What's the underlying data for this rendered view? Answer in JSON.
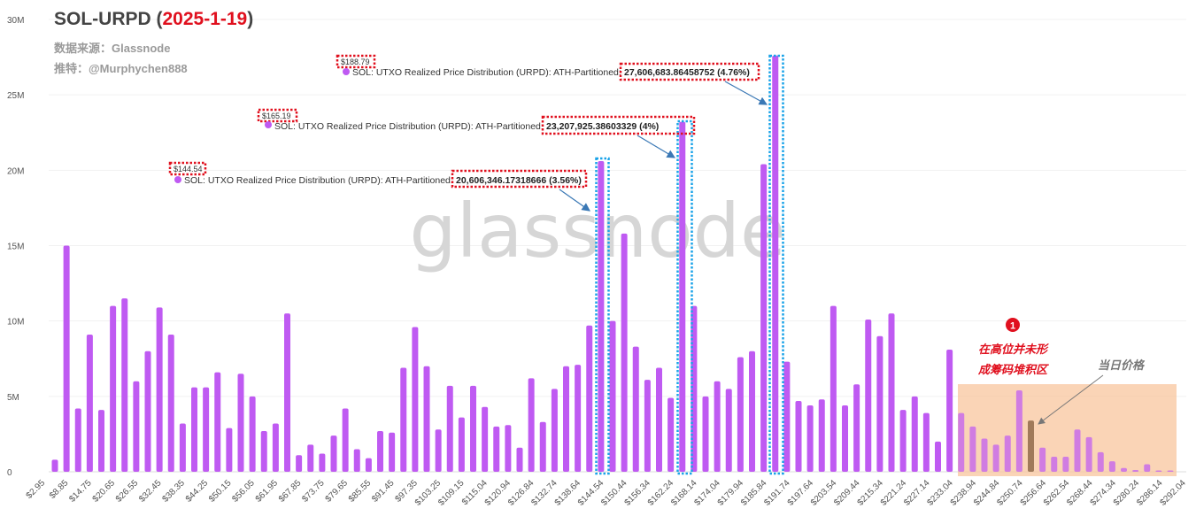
{
  "header": {
    "title_prefix": "SOL-URPD (",
    "title_date": "2025-1-19",
    "title_suffix": ")",
    "source": "数据来源：Glassnode",
    "twitter": "推特：@Murphychen888"
  },
  "watermark": "glassnode",
  "colors": {
    "bar": "#bf5af2",
    "current_bar": "#a07a5a",
    "highlight_zone": "#f9c9a4",
    "annotation_red": "#e0101e",
    "box_blue": "#1aa3e8"
  },
  "chart_data": {
    "type": "bar",
    "title": "SOL-URPD (2025-1-19)",
    "series_name": "SOL: UTXO Realized Price Distribution (URPD): ATH-Partitioned",
    "ylim": [
      0,
      30000000
    ],
    "yticks": [
      "0",
      "5M",
      "10M",
      "15M",
      "20M",
      "25M",
      "30M"
    ],
    "xtick_labels": [
      "$2.95",
      "$8.85",
      "$14.75",
      "$20.65",
      "$26.55",
      "$32.45",
      "$38.35",
      "$44.25",
      "$50.15",
      "$56.05",
      "$61.95",
      "$67.85",
      "$73.75",
      "$79.65",
      "$85.55",
      "$91.45",
      "$97.35",
      "$103.25",
      "$109.15",
      "$115.04",
      "$120.94",
      "$126.84",
      "$132.74",
      "$138.64",
      "$144.54",
      "$150.44",
      "$156.34",
      "$162.24",
      "$168.14",
      "$174.04",
      "$179.94",
      "$185.84",
      "$191.74",
      "$197.64",
      "$203.54",
      "$209.44",
      "$215.34",
      "$221.24",
      "$227.14",
      "$233.04",
      "$238.94",
      "$244.84",
      "$250.74",
      "$256.64",
      "$262.54",
      "$268.44",
      "$274.34",
      "$280.24",
      "$286.14",
      "$292.04"
    ],
    "values_millions": [
      0.8,
      15.0,
      4.2,
      9.1,
      4.1,
      11.0,
      11.5,
      6.0,
      8.0,
      10.9,
      9.1,
      3.2,
      5.6,
      5.6,
      6.6,
      2.9,
      6.5,
      5.0,
      2.7,
      3.2,
      10.5,
      1.1,
      1.8,
      1.2,
      2.4,
      4.2,
      1.5,
      0.9,
      2.7,
      2.6,
      6.9,
      9.6,
      7.0,
      2.8,
      5.7,
      3.6,
      5.7,
      4.3,
      3.0,
      3.1,
      1.6,
      6.2,
      3.3,
      5.5,
      7.0,
      7.1,
      9.7,
      20.61,
      10.0,
      15.8,
      8.3,
      6.1,
      6.9,
      4.9,
      23.21,
      11.0,
      5.0,
      6.0,
      5.5,
      7.6,
      8.0,
      20.4,
      27.61,
      7.3,
      4.7,
      4.4,
      4.8,
      11.0,
      4.4,
      5.8,
      10.1,
      9.0,
      10.5,
      4.1,
      5.0,
      3.9,
      2.0,
      8.1,
      3.9,
      3.0,
      2.2,
      1.8,
      2.4,
      5.4,
      3.4,
      1.6,
      1.0,
      1.0,
      2.8,
      2.3,
      1.3,
      0.7,
      0.25,
      0.12,
      0.5,
      0.03,
      0.03
    ],
    "current_price_bar_index": 84,
    "highlight_zone_bar_range": [
      78,
      96
    ],
    "grid": true
  },
  "tooltips": [
    {
      "price": "$144.54",
      "label": "SOL: UTXO Realized Price Distribution (URPD): ATH-Partitioned:",
      "value": "20,606,346.17318666 (3.56%)",
      "bar_index": 47
    },
    {
      "price": "$165.19",
      "label": "SOL: UTXO Realized Price Distribution (URPD): ATH-Partitioned:",
      "value": "23,207,925.38603329 (4%)",
      "bar_index": 54
    },
    {
      "price": "$188.79",
      "label": "SOL: UTXO Realized Price Distribution (URPD): ATH-Partitioned:",
      "value": "27,606,683.86458752 (4.76%)",
      "bar_index": 62
    }
  ],
  "annotations": {
    "marker_number": "1",
    "zone_note_line1": "在高位并未形",
    "zone_note_line2": "成筹码堆积区",
    "current_price_note": "当日价格"
  }
}
